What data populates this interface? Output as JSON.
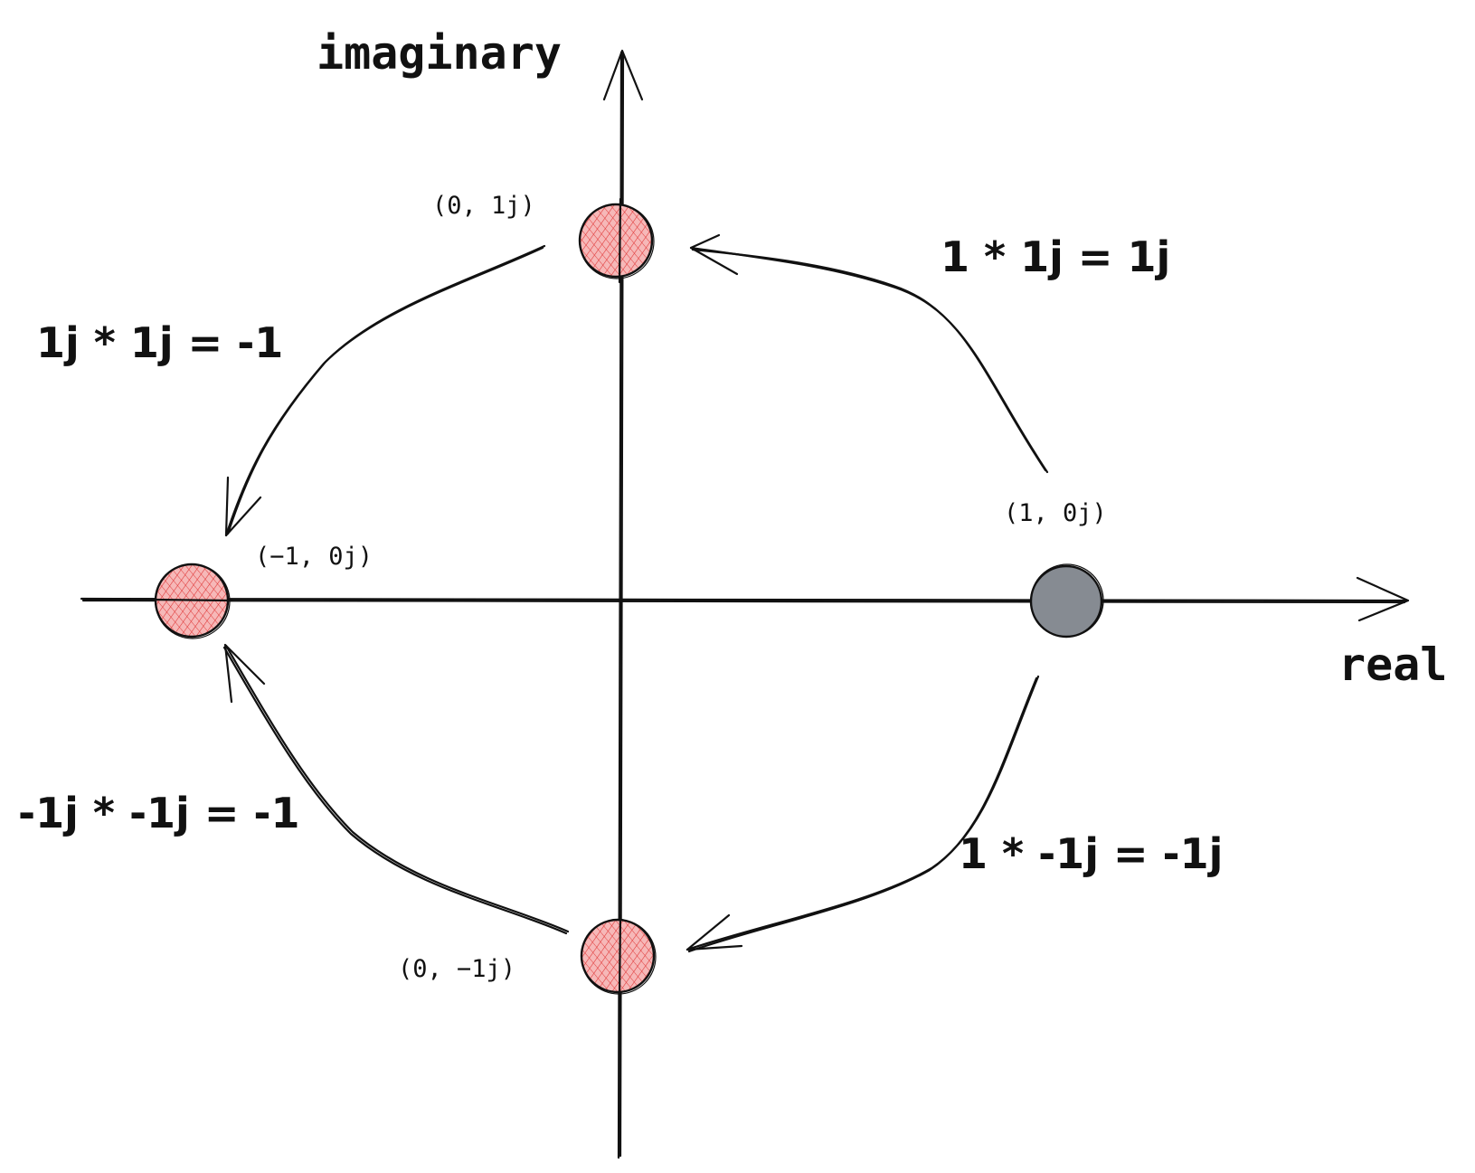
{
  "axes": {
    "imaginary_label": "imaginary",
    "real_label": "real"
  },
  "points": {
    "one": {
      "label": "(1, 0j)",
      "fill": "#868b92"
    },
    "j": {
      "label": "(0, 1j)",
      "fill": "#f4a9a9"
    },
    "neg_one": {
      "label": "(−1, 0j)",
      "fill": "#f4a9a9"
    },
    "neg_j": {
      "label": "(0, −1j)",
      "fill": "#f4a9a9"
    }
  },
  "equations": {
    "one_times_j": "1 * 1j = 1j",
    "j_times_j": "1j * 1j = -1",
    "one_times_neg_j": "1 * -1j = -1j",
    "neg_j_times_neg_j": "-1j * -1j = -1"
  },
  "colors": {
    "ink": "#111111",
    "highlight_fill": "#f4a9a9",
    "hatch": "#e03131",
    "start_fill": "#868b92"
  }
}
